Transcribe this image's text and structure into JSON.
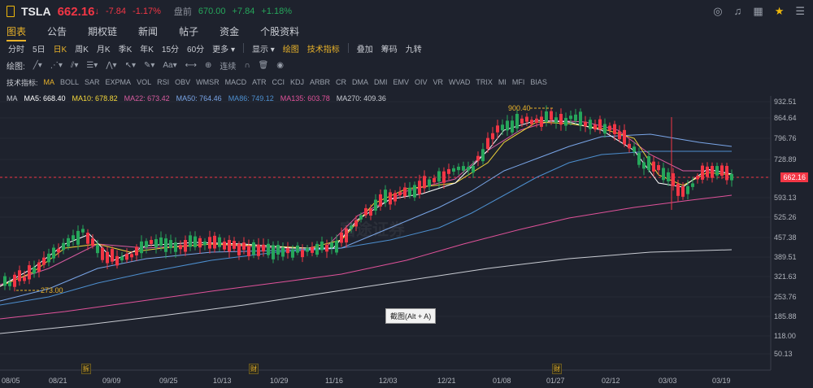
{
  "header": {
    "ticker": "TSLA",
    "price": "662.16",
    "arrow": "↓",
    "change": "-7.84",
    "change_pct": "-1.17%",
    "premarket_label": "盘前",
    "premarket_price": "670.00",
    "premarket_change": "+7.84",
    "premarket_pct": "+1.18%"
  },
  "tabs": [
    "图表",
    "公告",
    "期权链",
    "新闻",
    "帖子",
    "资金",
    "个股资料"
  ],
  "periods": {
    "items": [
      "分时",
      "5日",
      "日K",
      "周K",
      "月K",
      "季K",
      "年K",
      "15分",
      "60分",
      "更多 ▾"
    ],
    "extras": [
      "显示 ▾",
      "绘图",
      "技术指标",
      "叠加",
      "筹码",
      "九转"
    ]
  },
  "draw_toolbar": {
    "label": "绘图:",
    "connect": "连续"
  },
  "indicators": {
    "label": "技术指标:",
    "items": [
      "MA",
      "BOLL",
      "SAR",
      "EXPMA",
      "VOL",
      "RSI",
      "OBV",
      "WMSR",
      "MACD",
      "ATR",
      "CCI",
      "KDJ",
      "ARBR",
      "CR",
      "DMA",
      "DMI",
      "EMV",
      "OIV",
      "VR",
      "WVAD",
      "TRIX",
      "MI",
      "MFI",
      "BIAS"
    ]
  },
  "ma_legend": [
    {
      "text": "MA",
      "color": "#c9ccd3"
    },
    {
      "text": "MA5: 668.40",
      "color": "#ffffff"
    },
    {
      "text": "MA10: 678.82",
      "color": "#f5d83b"
    },
    {
      "text": "MA22: 673.42",
      "color": "#d85ca0"
    },
    {
      "text": "MA50: 764.46",
      "color": "#7aa6e8"
    },
    {
      "text": "MA86: 749.12",
      "color": "#4d8fcf"
    },
    {
      "text": "MA135: 603.78",
      "color": "#e0529a"
    },
    {
      "text": "MA270: 409.36",
      "color": "#c9ccd3"
    }
  ],
  "y_axis": [
    "932.51",
    "864.64",
    "796.76",
    "728.89",
    "662.16",
    "593.13",
    "525.26",
    "457.38",
    "389.51",
    "321.63",
    "253.76",
    "185.88",
    "118.00",
    "50.13"
  ],
  "x_axis": [
    "08/05",
    "08/21",
    "09/09",
    "09/25",
    "10/13",
    "10/29",
    "11/16",
    "12/03",
    "12/21",
    "01/08",
    "01/27",
    "02/12",
    "03/03",
    "03/19"
  ],
  "annotations": {
    "high": "900.40",
    "low": "273.00"
  },
  "events": [
    "拆",
    "财",
    "财"
  ],
  "tooltip": "截图(Alt + A)",
  "watermark": "富途证券",
  "colors": {
    "up": "#26a65b",
    "down": "#f23645",
    "accent": "#e8b22a"
  }
}
